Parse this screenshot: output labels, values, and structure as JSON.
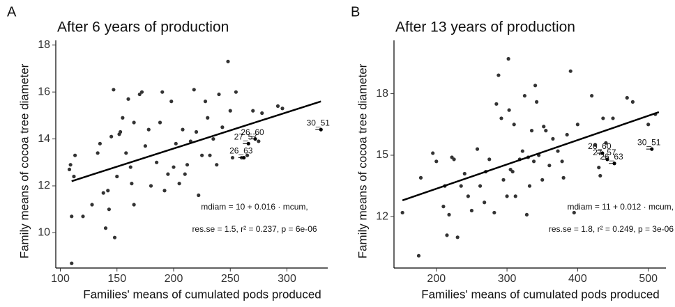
{
  "chart_data": [
    {
      "type": "scatter",
      "panel": "A",
      "title": "After 6 years of production",
      "x_label": "Families' means of cumulated pods produced",
      "y_label": "Family means of cocoa tree diameter",
      "xlim": [
        96,
        336
      ],
      "ylim": [
        8.5,
        18.2
      ],
      "xticks": [
        100,
        150,
        200,
        250,
        300
      ],
      "yticks": [
        10,
        12,
        14,
        16,
        18
      ],
      "color": "#333333",
      "x": [
        108,
        109,
        110,
        110,
        112,
        113,
        120,
        128,
        133,
        135,
        138,
        140,
        142,
        143,
        145,
        147,
        148,
        150,
        152,
        153,
        155,
        158,
        160,
        162,
        163,
        165,
        165,
        170,
        172,
        175,
        178,
        180,
        185,
        188,
        190,
        192,
        195,
        198,
        200,
        202,
        205,
        208,
        210,
        212,
        215,
        218,
        220,
        222,
        225,
        228,
        230,
        232,
        235,
        238,
        240,
        243,
        248,
        250,
        252,
        255,
        260,
        265,
        270,
        275,
        278,
        292,
        296
      ],
      "y": [
        12.7,
        12.9,
        10.7,
        8.7,
        12.4,
        13.3,
        10.7,
        11.2,
        13.4,
        13.8,
        11.7,
        10.2,
        11.8,
        11.0,
        14.1,
        16.1,
        9.8,
        12.4,
        14.2,
        14.3,
        14.9,
        13.4,
        15.7,
        12.8,
        12.1,
        14.7,
        11.2,
        15.9,
        16.0,
        13.7,
        14.4,
        12.0,
        13.0,
        14.7,
        16.0,
        11.8,
        12.5,
        15.6,
        12.8,
        13.8,
        12.1,
        14.4,
        12.5,
        12.9,
        13.9,
        16.1,
        14.3,
        11.6,
        13.3,
        15.6,
        14.9,
        13.3,
        14.0,
        12.9,
        15.9,
        14.5,
        17.3,
        15.2,
        13.2,
        16.0,
        13.2,
        13.3,
        15.2,
        13.9,
        15.1,
        15.4,
        15.3
      ],
      "fit": {
        "x": [
          110,
          330
        ],
        "y": [
          12.2,
          15.6
        ]
      },
      "point_labels": [
        {
          "name": "30_51",
          "x": 330,
          "y": 14.4
        },
        {
          "name": "26_60",
          "x": 272,
          "y": 14.0
        },
        {
          "name": "27_57",
          "x": 266,
          "y": 13.8
        },
        {
          "name": "26_63",
          "x": 262,
          "y": 13.2
        }
      ],
      "annotations": [
        "mdiam = 10 + 0.016 · mcum,",
        "res.se = 1.5,  r² = 0.237,  p = 6e-06"
      ]
    },
    {
      "type": "scatter",
      "panel": "B",
      "title": "After 13 years of production",
      "x_label": "Families' means of cumulated pods produced",
      "y_label": "Family means of cocoa tree diameter",
      "xlim": [
        140,
        525
      ],
      "ylim": [
        9.5,
        20.6
      ],
      "xticks": [
        200,
        300,
        400,
        500
      ],
      "yticks": [
        12,
        15,
        18
      ],
      "color": "#333333",
      "x": [
        152,
        175,
        178,
        195,
        200,
        210,
        212,
        215,
        218,
        222,
        225,
        230,
        235,
        240,
        245,
        250,
        258,
        262,
        268,
        270,
        275,
        282,
        285,
        288,
        292,
        295,
        300,
        302,
        303,
        305,
        308,
        310,
        312,
        318,
        322,
        325,
        328,
        330,
        332,
        335,
        338,
        340,
        342,
        345,
        350,
        352,
        355,
        360,
        365,
        372,
        378,
        380,
        385,
        390,
        395,
        400,
        420,
        425,
        430,
        432,
        436,
        440,
        450,
        470,
        478,
        500,
        510
      ],
      "y": [
        12.2,
        10.1,
        13.9,
        15.1,
        14.7,
        12.5,
        13.5,
        11.1,
        12.1,
        14.9,
        14.8,
        11.0,
        13.5,
        14.1,
        13.0,
        12.3,
        15.3,
        13.5,
        12.7,
        14.2,
        14.8,
        12.2,
        17.5,
        18.9,
        16.8,
        13.8,
        13.0,
        19.7,
        17.2,
        14.3,
        14.2,
        16.5,
        13.0,
        14.8,
        15.2,
        17.9,
        12.1,
        14.9,
        13.5,
        16.2,
        14.7,
        18.4,
        17.6,
        15.0,
        13.8,
        16.4,
        16.2,
        14.5,
        15.8,
        15.2,
        14.7,
        13.9,
        16.0,
        19.1,
        12.2,
        16.5,
        17.9,
        15.5,
        14.4,
        14.0,
        16.8,
        15.6,
        16.8,
        17.8,
        17.6,
        16.5,
        17.0
      ],
      "fit": {
        "x": [
          152,
          515
        ],
        "y": [
          12.8,
          17.1
        ]
      },
      "point_labels": [
        {
          "name": "30_51",
          "x": 505,
          "y": 15.3
        },
        {
          "name": "26_60",
          "x": 435,
          "y": 15.1
        },
        {
          "name": "27_57",
          "x": 442,
          "y": 14.8
        },
        {
          "name": "26_63",
          "x": 452,
          "y": 14.6
        }
      ],
      "annotations": [
        "mdiam = 11 + 0.012 · mcum,",
        "res.se = 1.8,  r² = 0.249,  p = 3e-06"
      ]
    }
  ]
}
